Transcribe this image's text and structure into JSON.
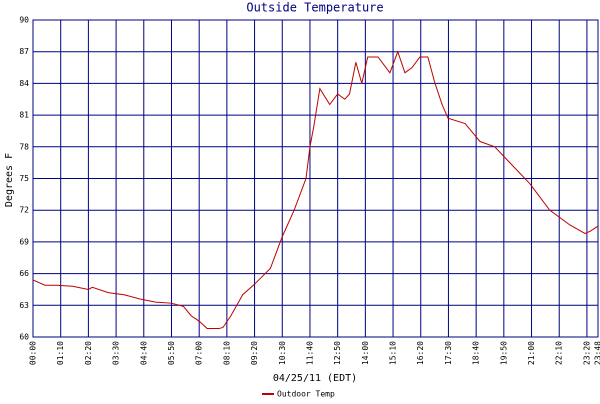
{
  "chart_data": {
    "type": "line",
    "title": "Outside Temperature",
    "y_label": "Degrees F",
    "x_label": "04/25/11 (EDT)",
    "xlim": [
      0,
      1428
    ],
    "xticks": [
      {
        "value": 0,
        "label": "00:00"
      },
      {
        "value": 70,
        "label": "01:10"
      },
      {
        "value": 140,
        "label": "02:20"
      },
      {
        "value": 210,
        "label": "03:30"
      },
      {
        "value": 280,
        "label": "04:40"
      },
      {
        "value": 350,
        "label": "05:50"
      },
      {
        "value": 420,
        "label": "07:00"
      },
      {
        "value": 490,
        "label": "08:10"
      },
      {
        "value": 560,
        "label": "09:20"
      },
      {
        "value": 630,
        "label": "10:30"
      },
      {
        "value": 700,
        "label": "11:40"
      },
      {
        "value": 770,
        "label": "12:50"
      },
      {
        "value": 840,
        "label": "14:00"
      },
      {
        "value": 910,
        "label": "15:10"
      },
      {
        "value": 980,
        "label": "16:20"
      },
      {
        "value": 1050,
        "label": "17:30"
      },
      {
        "value": 1120,
        "label": "18:40"
      },
      {
        "value": 1190,
        "label": "19:50"
      },
      {
        "value": 1260,
        "label": "21:00"
      },
      {
        "value": 1330,
        "label": "22:10"
      },
      {
        "value": 1400,
        "label": "23:20"
      },
      {
        "value": 1428,
        "label": "23:48"
      }
    ],
    "ylim": [
      60,
      90
    ],
    "yticks": [
      60,
      63,
      66,
      69,
      72,
      75,
      78,
      81,
      84,
      87,
      90
    ],
    "grid": true,
    "legend": "bottom",
    "x": [
      0,
      30,
      60,
      100,
      140,
      150,
      190,
      230,
      270,
      310,
      350,
      380,
      400,
      420,
      440,
      470,
      480,
      500,
      530,
      560,
      600,
      630,
      660,
      690,
      700,
      710,
      725,
      750,
      770,
      788,
      800,
      816,
      831,
      846,
      872,
      902,
      922,
      940,
      958,
      978,
      998,
      1016,
      1034,
      1049,
      1092,
      1130,
      1167,
      1205,
      1256,
      1306,
      1357,
      1395,
      1408,
      1428
    ],
    "series": [
      {
        "name": "Outdoor Temp",
        "color": "#c00000",
        "values": [
          65.4,
          64.9,
          64.9,
          64.8,
          64.5,
          64.7,
          64.2,
          64.0,
          63.6,
          63.3,
          63.2,
          62.9,
          62.0,
          61.5,
          60.8,
          60.8,
          60.9,
          62.0,
          64.0,
          65.0,
          66.5,
          69.5,
          72.0,
          75.0,
          78.0,
          80.0,
          83.5,
          82.0,
          83.0,
          82.5,
          83.0,
          86.0,
          84.0,
          86.5,
          86.5,
          85.0,
          87.0,
          85.0,
          85.5,
          86.5,
          86.5,
          84.0,
          82.0,
          80.7,
          80.2,
          78.5,
          78.0,
          76.5,
          74.5,
          72.0,
          70.6,
          69.8,
          70.0,
          70.5
        ]
      }
    ]
  }
}
